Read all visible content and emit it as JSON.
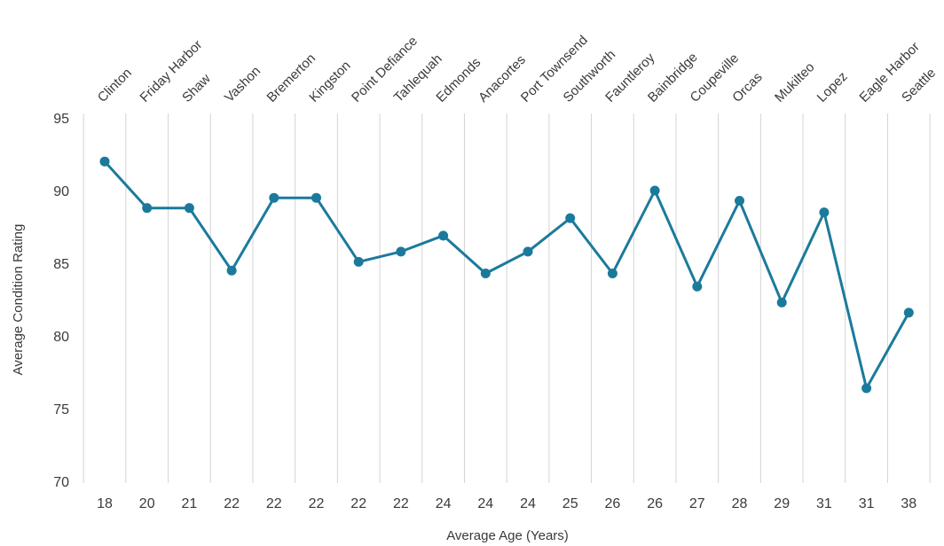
{
  "chart_data": {
    "type": "line",
    "title": "",
    "xlabel": "Average Age (Years)",
    "ylabel": "Average Condition Rating",
    "ylim": [
      70,
      95
    ],
    "yticks": [
      70,
      75,
      80,
      85,
      90,
      95
    ],
    "grid": "vertical",
    "colors": {
      "series": "#1b7a9b",
      "grid": "#d4d4d4",
      "text": "#3a3a3a"
    },
    "categories": [
      "Clinton",
      "Friday Harbor",
      "Shaw",
      "Vashon",
      "Bremerton",
      "Kingston",
      "Point Defiance",
      "Tahlequah",
      "Edmonds",
      "Anacortes",
      "Port Townsend",
      "Southworth",
      "Fauntleroy",
      "Bainbridge",
      "Coupeville",
      "Orcas",
      "Mukilteo",
      "Lopez",
      "Eagle Harbor",
      "Seattle"
    ],
    "ages": [
      "18",
      "20",
      "21",
      "22",
      "22",
      "22",
      "22",
      "22",
      "24",
      "24",
      "24",
      "25",
      "26",
      "26",
      "27",
      "28",
      "29",
      "31",
      "31",
      "38"
    ],
    "series": [
      {
        "values": [
          92.0,
          88.8,
          88.8,
          84.5,
          89.5,
          89.5,
          85.1,
          85.8,
          86.9,
          84.3,
          85.8,
          88.1,
          84.3,
          90.0,
          83.4,
          89.3,
          82.3,
          88.5,
          76.4,
          81.6
        ]
      }
    ]
  }
}
